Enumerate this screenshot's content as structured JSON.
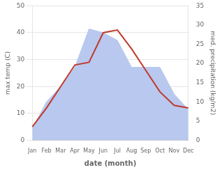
{
  "chart_data": {
    "type": "line",
    "categories": [
      "Jan",
      "Feb",
      "Mar",
      "Apr",
      "May",
      "Jun",
      "Jul",
      "Aug",
      "Sep",
      "Oct",
      "Nov",
      "Dec"
    ],
    "series": [
      {
        "type": "area",
        "color": "#b8c8ee",
        "axis": "y2",
        "values": [
          3,
          10,
          14,
          19,
          29,
          28,
          26,
          19,
          19,
          19,
          12,
          8
        ]
      },
      {
        "type": "line",
        "color": "#c0392b",
        "values": [
          5,
          12,
          20,
          28,
          29,
          40,
          41,
          34,
          26,
          18,
          13,
          12
        ]
      }
    ],
    "xlabel": "date (month)",
    "ylabel": "max temp (C)",
    "y2label": "med. precipitation (kg/m2)",
    "ylim": [
      0,
      50
    ],
    "yticks": [
      0,
      10,
      20,
      30,
      40,
      50
    ],
    "y2lim": [
      0,
      35
    ],
    "y2ticks": [
      0,
      5,
      10,
      15,
      20,
      25,
      30,
      35
    ],
    "grid": true
  }
}
